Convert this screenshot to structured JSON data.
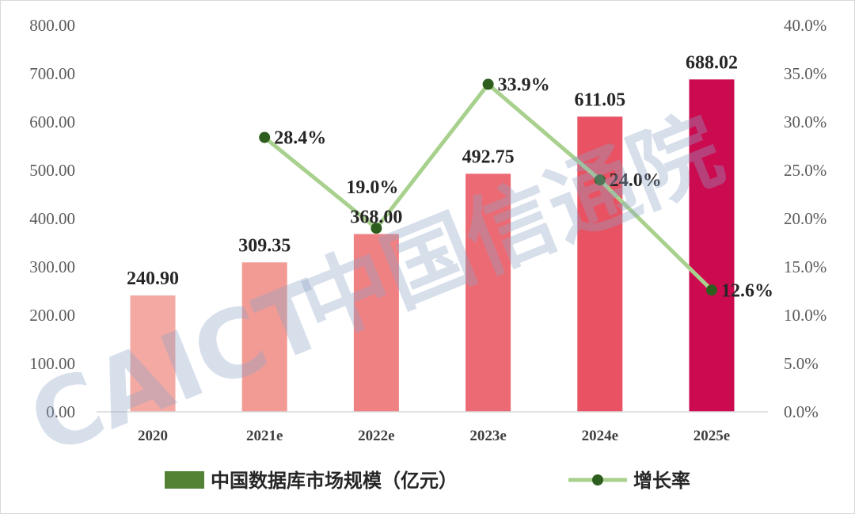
{
  "chart_data": {
    "type": "bar+line",
    "categories": [
      "2020",
      "2021e",
      "2022e",
      "2023e",
      "2024e",
      "2025e"
    ],
    "series": [
      {
        "name": "中国数据库市场规模（亿元）",
        "type": "bar",
        "axis": "left",
        "values": [
          240.9,
          309.35,
          368.0,
          492.75,
          611.05,
          688.02
        ],
        "labels": [
          "240.90",
          "309.35",
          "368.00",
          "492.75",
          "611.05",
          "688.02"
        ],
        "colors": [
          "#f4aaa2",
          "#f29b95",
          "#f08183",
          "#ec6a73",
          "#e85262",
          "#cc0a50"
        ]
      },
      {
        "name": "增长率",
        "type": "line",
        "axis": "right",
        "values": [
          null,
          28.4,
          19.0,
          33.9,
          24.0,
          12.6
        ],
        "labels": [
          "",
          "28.4%",
          "19.0%",
          "33.9%",
          "24.0%",
          "12.6%"
        ],
        "line_color": "#a9d18e",
        "marker_color": "#2e5e1e"
      }
    ],
    "left_axis": {
      "range": [
        0,
        800
      ],
      "ticks": [
        "0.00",
        "100.00",
        "200.00",
        "300.00",
        "400.00",
        "500.00",
        "600.00",
        "700.00",
        "800.00"
      ]
    },
    "right_axis": {
      "range": [
        0,
        40
      ],
      "ticks": [
        "0.0%",
        "5.0%",
        "10.0%",
        "15.0%",
        "20.0%",
        "25.0%",
        "30.0%",
        "35.0%",
        "40.0%"
      ]
    },
    "grid": false,
    "legend": {
      "placement": "bottom",
      "bar_swatch_color": "#548235"
    },
    "watermark": "CAICT 中国信通院"
  }
}
